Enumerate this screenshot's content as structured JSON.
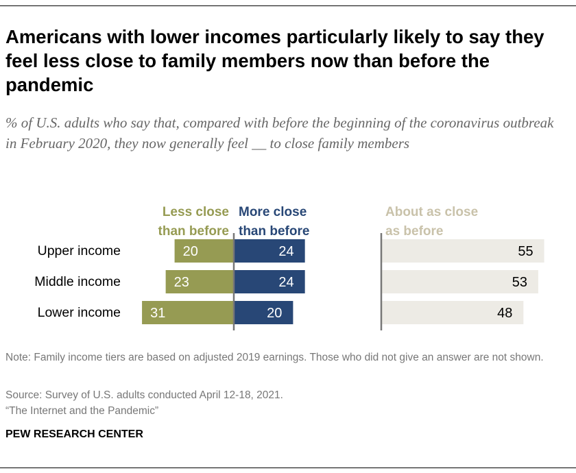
{
  "title": "Americans with lower incomes particularly likely to say they feel less close to family members now than before the pandemic",
  "subtitle": "% of U.S. adults who say that, compared with before the beginning of the coronavirus outbreak in February 2020, they now generally feel __ to close family members",
  "chart_data": {
    "type": "bar",
    "orientation": "horizontal-diverging",
    "categories": [
      "Upper income",
      "Middle income",
      "Lower income"
    ],
    "series": [
      {
        "name": "Less close than before",
        "values": [
          20,
          23,
          31
        ],
        "color": "#969B53"
      },
      {
        "name": "More close than before",
        "values": [
          24,
          24,
          20
        ],
        "color": "#284776"
      },
      {
        "name": "About as close as before",
        "values": [
          55,
          53,
          48
        ],
        "color": "#EDEBE5"
      }
    ],
    "header_colors": [
      "#969B53",
      "#284776",
      "#C9C2AA"
    ],
    "data_labels": true,
    "grid": false
  },
  "headers": {
    "less": [
      "Less close",
      "than before"
    ],
    "more": [
      "More close",
      "than before"
    ],
    "about": [
      "About as close",
      "as before"
    ]
  },
  "footer": {
    "note": "Note: Family income tiers are based on adjusted 2019 earnings. Those who did not give an answer are not shown.",
    "source": "Source: Survey of U.S. adults conducted April 12-18, 2021.",
    "report": "“The Internet and the Pandemic”",
    "brand": "PEW RESEARCH CENTER"
  }
}
